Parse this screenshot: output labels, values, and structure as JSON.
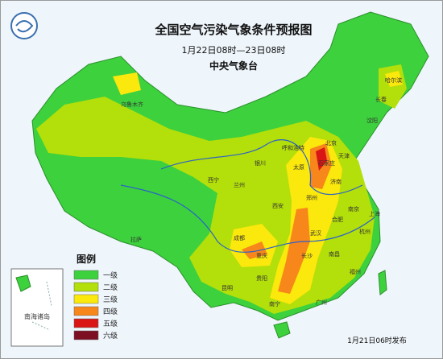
{
  "header": {
    "title": "全国空气污染气象条件预报图",
    "period": "1月22日08时—23日08时",
    "issuer": "中央气象台"
  },
  "legend": {
    "title": "图例",
    "levels": [
      {
        "label": "一级",
        "color": "#3dd13d"
      },
      {
        "label": "二级",
        "color": "#b3df0a"
      },
      {
        "label": "三级",
        "color": "#fbe80c"
      },
      {
        "label": "四级",
        "color": "#f7861b"
      },
      {
        "label": "五级",
        "color": "#d91515"
      },
      {
        "label": "六级",
        "color": "#7c0f22"
      }
    ]
  },
  "inset": {
    "label": "南海诸岛"
  },
  "cities": [
    "乌鲁木齐",
    "拉萨",
    "成都",
    "重庆",
    "西安",
    "太原",
    "石家庄",
    "郑州",
    "武汉",
    "长沙",
    "南昌",
    "合肥",
    "南京",
    "上海",
    "杭州",
    "福州",
    "广州",
    "南宁",
    "贵阳",
    "昆明",
    "哈尔滨",
    "长春",
    "沈阳",
    "北京",
    "天津",
    "济南",
    "兰州",
    "西宁",
    "银川",
    "呼和浩特"
  ],
  "footer": {
    "issued": "1月21日06时发布"
  }
}
